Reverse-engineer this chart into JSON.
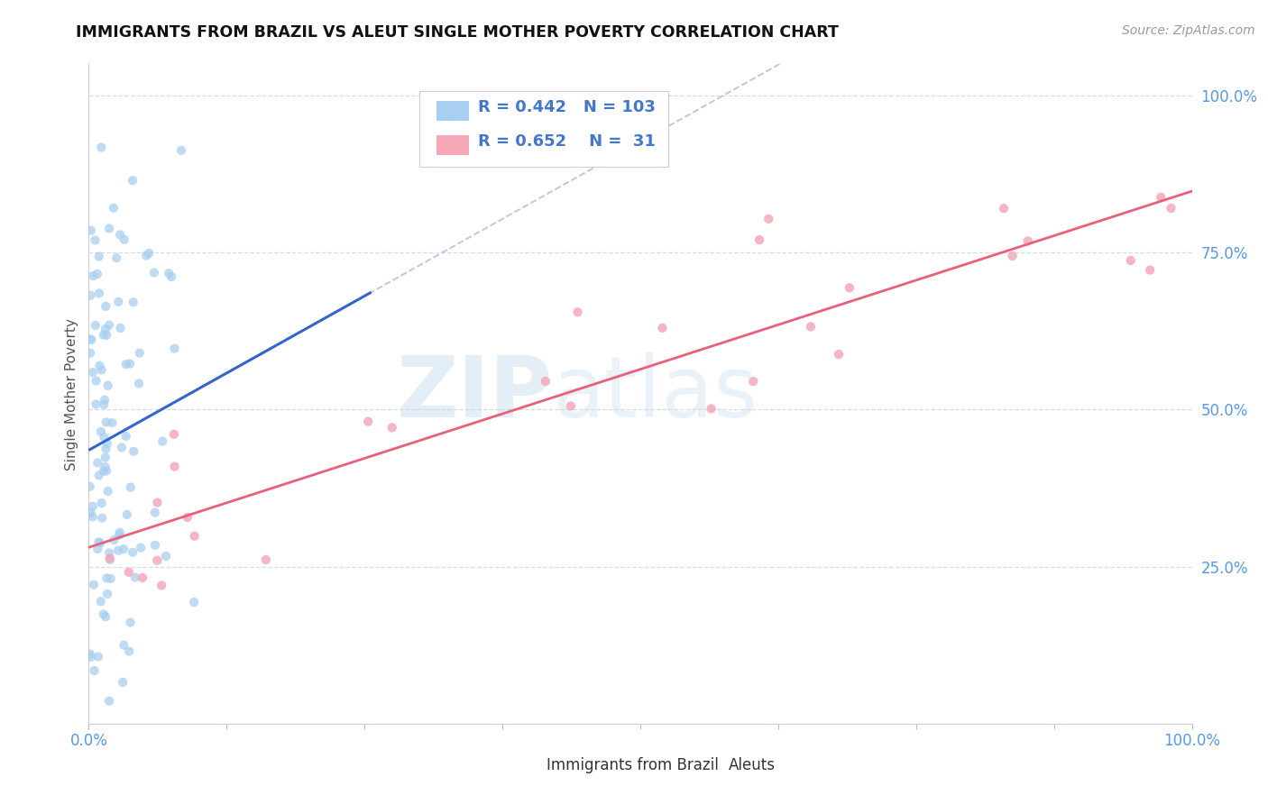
{
  "title": "IMMIGRANTS FROM BRAZIL VS ALEUT SINGLE MOTHER POVERTY CORRELATION CHART",
  "source_text": "Source: ZipAtlas.com",
  "ylabel": "Single Mother Poverty",
  "watermark_zip": "ZIP",
  "watermark_atlas": "atlas",
  "legend_label_blue": "Immigrants from Brazil",
  "legend_label_pink": "Aleuts",
  "R_blue": 0.442,
  "N_blue": 103,
  "R_pink": 0.652,
  "N_pink": 31,
  "blue_scatter_color": "#a8cff0",
  "pink_scatter_color": "#f5a8b8",
  "blue_line_color": "#3366cc",
  "pink_line_color": "#e8607a",
  "dashed_line_color": "#b0b8d8",
  "legend_blue_patch": "#a8cff0",
  "legend_pink_patch": "#f5a8b8",
  "axis_tick_color": "#5599ee",
  "background_color": "#ffffff",
  "grid_color": "#d0d8e8",
  "title_color": "#111111",
  "ylabel_color": "#555555",
  "source_color": "#999999",
  "legend_text_color_RN": "#111111",
  "legend_num_color": "#4477cc"
}
